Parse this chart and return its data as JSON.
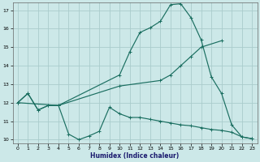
{
  "xlabel": "Humidex (Indice chaleur)",
  "bg_color": "#cce8e8",
  "grid_color": "#aacccc",
  "line_color": "#1a6e60",
  "xlim": [
    -0.5,
    23.5
  ],
  "ylim": [
    9.8,
    17.4
  ],
  "yticks": [
    10,
    11,
    12,
    13,
    14,
    15,
    16,
    17
  ],
  "xticks": [
    0,
    1,
    2,
    3,
    4,
    5,
    6,
    7,
    8,
    9,
    10,
    11,
    12,
    13,
    14,
    15,
    16,
    17,
    18,
    19,
    20,
    21,
    22,
    23
  ],
  "line1_x": [
    0,
    1,
    2,
    3,
    4,
    5,
    6,
    7,
    8,
    9,
    10,
    11,
    12,
    13,
    14,
    15,
    16,
    17,
    18,
    19,
    20,
    21,
    22,
    23
  ],
  "line1_y": [
    12.0,
    12.5,
    11.6,
    11.85,
    11.85,
    10.3,
    10.0,
    10.2,
    10.45,
    11.75,
    11.4,
    11.2,
    11.2,
    11.1,
    11.0,
    10.9,
    10.8,
    10.75,
    10.65,
    10.55,
    10.5,
    10.4,
    10.15,
    10.05
  ],
  "line2_x": [
    0,
    1,
    2,
    3,
    4,
    10,
    11,
    12,
    13,
    14,
    15,
    16,
    17,
    18,
    19,
    20,
    21,
    22,
    23
  ],
  "line2_y": [
    12.0,
    12.5,
    11.6,
    11.85,
    11.85,
    13.5,
    14.75,
    15.8,
    16.05,
    16.4,
    17.3,
    17.35,
    16.6,
    15.4,
    13.4,
    12.5,
    10.8,
    10.15,
    10.05
  ],
  "line3_x": [
    0,
    4,
    10,
    14,
    15,
    16,
    17,
    18,
    20
  ],
  "line3_y": [
    12.0,
    11.85,
    12.9,
    13.2,
    13.5,
    14.0,
    14.5,
    15.0,
    15.35
  ]
}
